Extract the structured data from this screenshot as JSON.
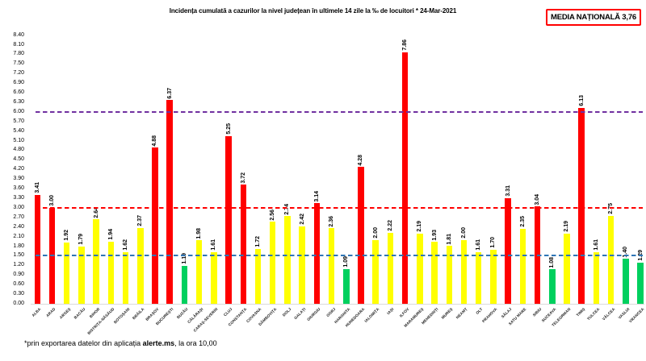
{
  "title": "Incidența cumulată a cazurilor la nivel județean în ultimele 14 zile la ‰ de locuitori *  24-Mar-2021",
  "media_box": {
    "label": "MEDIA NAȚIONALĂ 3,76",
    "border_color": "#ff0000"
  },
  "footnote": {
    "prefix": "*prin exportarea datelor din aplicația ",
    "bold": "alerte.ms",
    "suffix": ", la ora 10,00"
  },
  "chart_data": {
    "type": "bar",
    "title": "Incidența cumulată a cazurilor la nivel județean în ultimele 14 zile la ‰ de locuitori *  24-Mar-2021",
    "categories": [
      "ALBA",
      "ARAD",
      "ARGEȘ",
      "BACĂU",
      "BIHOR",
      "BISTRIȚA-NĂSĂUD",
      "BOTOȘANI",
      "BRĂILA",
      "BRAȘOV",
      "BUCUREȘTI",
      "BUZĂU",
      "CĂLĂRAȘI",
      "CARAȘ-SEVERIN",
      "CLUJ",
      "CONSTANȚA",
      "COVASNA",
      "DÂMBOVIȚA",
      "DOLJ",
      "GALAȚI",
      "GIURGIU",
      "GORJ",
      "HARGHITA",
      "HUNEDOARA",
      "IALOMIȚA",
      "IAȘI",
      "ILFOV",
      "MARAMUREȘ",
      "MEHEDINȚI",
      "MUREȘ",
      "NEAMȚ",
      "OLT",
      "PRAHOVA",
      "SĂLAJ",
      "SATU MARE",
      "SIBIU",
      "SUCEAVA",
      "TELEORMAN",
      "TIMIȘ",
      "TULCEA",
      "VÂLCEA",
      "VASLUI",
      "VRANCEA"
    ],
    "values": [
      3.41,
      3.0,
      1.92,
      1.79,
      2.64,
      1.94,
      1.62,
      2.37,
      4.88,
      6.37,
      1.19,
      1.98,
      1.61,
      5.25,
      3.72,
      1.72,
      2.56,
      2.74,
      2.42,
      3.14,
      2.36,
      1.09,
      4.28,
      2.0,
      2.22,
      7.86,
      2.19,
      1.93,
      1.81,
      2.0,
      1.61,
      1.7,
      3.31,
      2.35,
      3.04,
      1.08,
      2.19,
      6.13,
      1.61,
      2.75,
      1.4,
      1.29
    ],
    "value_label_format": "0.00",
    "national_average": "3,76",
    "bar_colors": {
      "high": "#ff0000",
      "mid": "#ffff00",
      "low": "#00d05e"
    },
    "color_thresholds": {
      "red_min": 3.0,
      "green_max": 1.5
    },
    "reference_lines": [
      {
        "value": 6.0,
        "color": "#7030a0"
      },
      {
        "value": 3.0,
        "color": "#ff0000"
      },
      {
        "value": 1.5,
        "color": "#2e75b6"
      }
    ],
    "y_axis": {
      "min": 0.0,
      "max": 8.4,
      "step": 0.3,
      "tick_decimals": 2
    },
    "xlabel": "",
    "ylabel": "",
    "grid": false,
    "legend": false
  }
}
